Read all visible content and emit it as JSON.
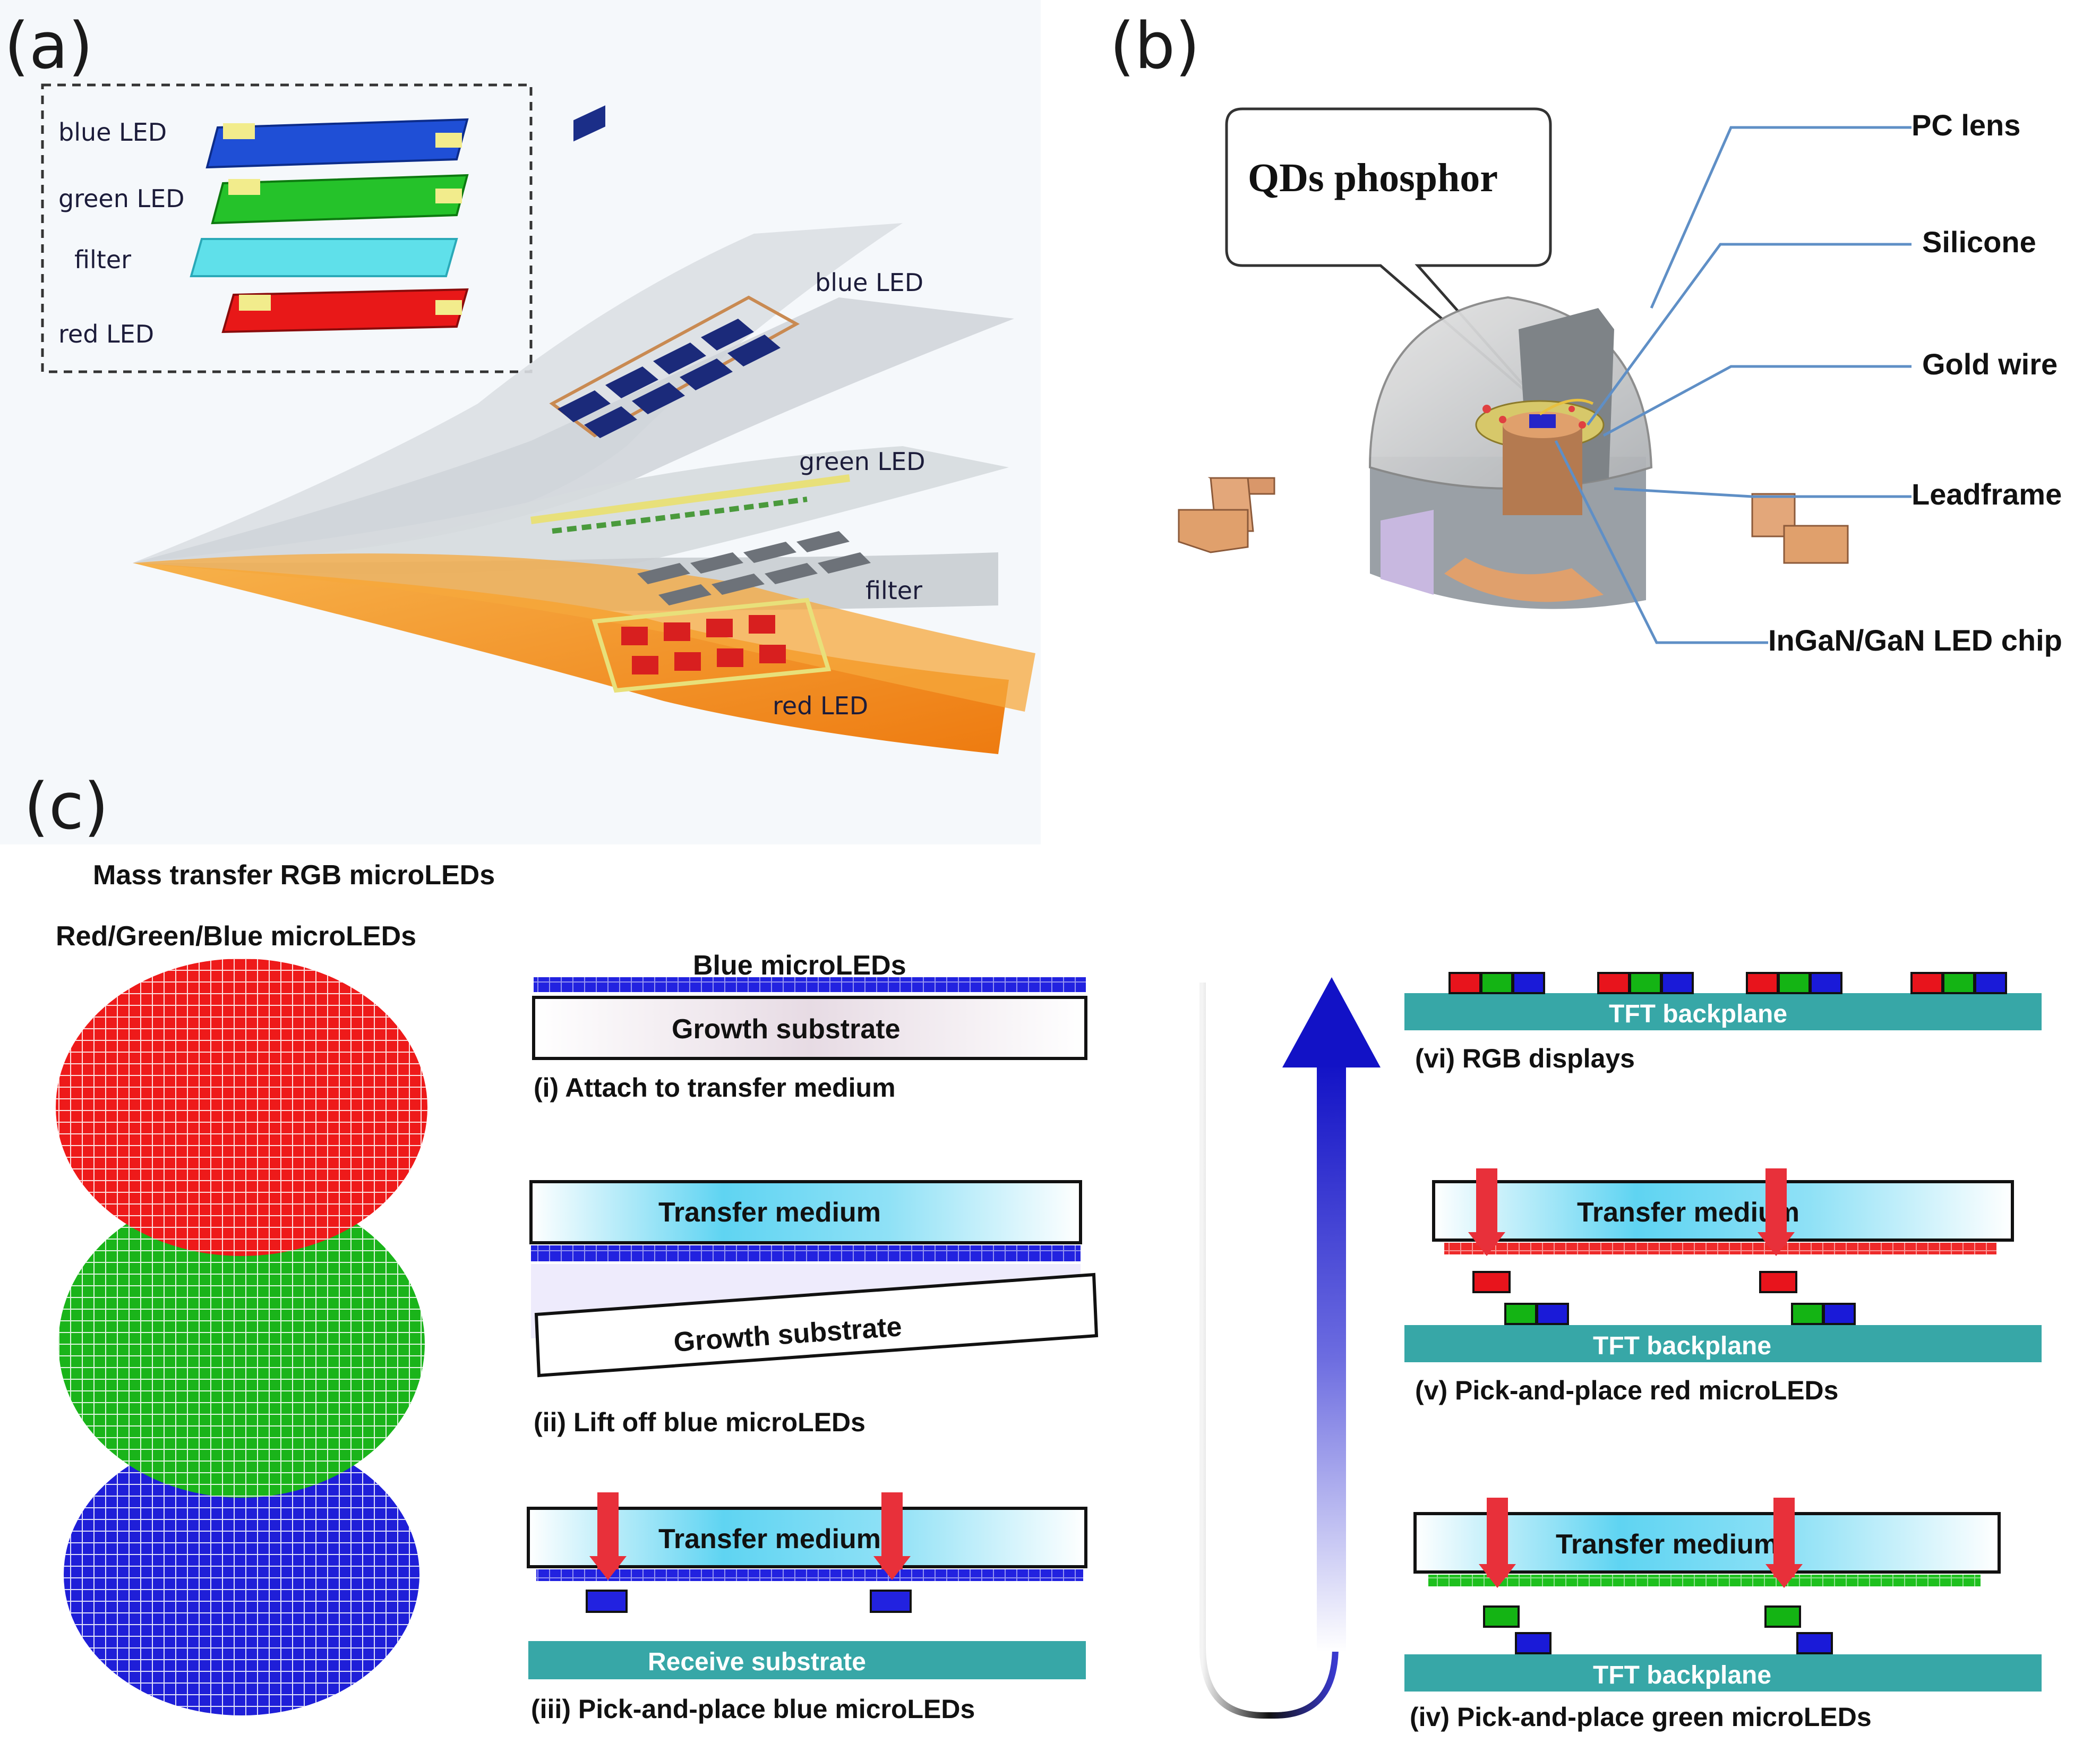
{
  "panel_a": {
    "label": "(a)",
    "inset_labels": [
      "blue LED",
      "green LED",
      "filter",
      "red LED"
    ],
    "blue_led": "blue LED",
    "green_led": "green LED",
    "filter": "filter",
    "red_led": "red LED"
  },
  "panel_b": {
    "label": "(b)",
    "qds_phosphor": "QDs phosphor",
    "pc_lens": "PC lens",
    "silicone": "Silicone",
    "gold_wire": "Gold wire",
    "leadframe": "Leadframe",
    "led_chip": "InGaN/GaN LED chip"
  },
  "panel_c": {
    "label": "(c)",
    "title": "Mass transfer RGB microLEDs",
    "subtitle": "Red/Green/Blue microLEDs",
    "blue_microleds": "Blue microLEDs",
    "growth_substrate": "Growth substrate",
    "transfer_medium": "Transfer medium",
    "receive_substrate": "Receive  substrate",
    "tft_backplane": "TFT backplane",
    "steps": {
      "i": "(i) Attach to transfer medium",
      "ii": "(ii) Lift off  blue microLEDs",
      "iii": "(iii) Pick-and-place blue microLEDs",
      "iv": "(iv) Pick-and-place green microLEDs",
      "v": "(v) Pick-and-place red microLEDs",
      "vi": "(vi) RGB displays"
    }
  },
  "colors": {
    "red": "#e8141c",
    "green": "#14b414",
    "blue": "#1a1ad8",
    "cyan": "#5cd2ee",
    "teal": "#37a7a7",
    "orange": "#f29324",
    "copper": "#e0a06c"
  }
}
